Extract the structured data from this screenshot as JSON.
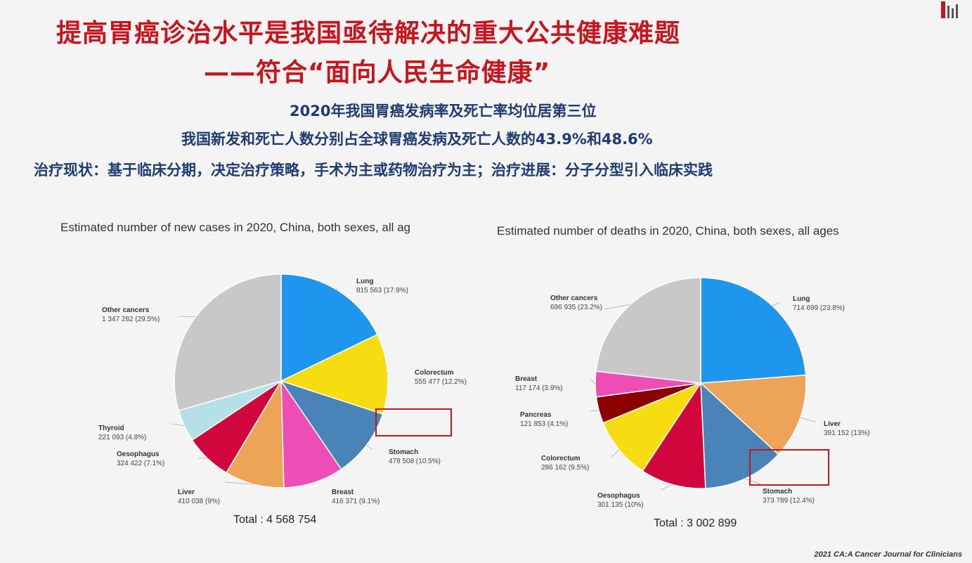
{
  "slide": {
    "title_line1": "提高胃癌诊治水平是我国亟待解决的重大公共健康难题",
    "title_line2": "——符合“面向人民生命健康”",
    "subtitle_line1": "2020年我国胃癌发病率及死亡率均位居第三位",
    "subtitle_line2": "我国新发和死亡人数分别占全球胃癌发病及死亡人数的43.9%和48.6%",
    "subtitle_line3": "治疗现状：基于临床分期，决定治疗策略，手术为主或药物治疗为主；治疗进展：分子分型引入临床实践",
    "citation": "2021 CA:A Cancer Journal for Clinicians",
    "accent_color": "#c8141c",
    "subtitle_color": "#1f3b73",
    "highlight_box_color": "#c8141c"
  },
  "chart_data": [
    {
      "type": "pie",
      "title": "Estimated number of new cases in 2020, China, both sexes, all ag",
      "total_label": "Total : 4 568 754",
      "highlighted": "Stomach",
      "slices": [
        {
          "name": "Lung",
          "value_label": "815 563 (17.9%)",
          "value": 815563,
          "percent": 17.9,
          "color": "#1f96ee"
        },
        {
          "name": "Colorectum",
          "value_label": "555 477 (12.2%)",
          "value": 555477,
          "percent": 12.2,
          "color": "#f7dc11"
        },
        {
          "name": "Stomach",
          "value_label": "478 508 (10.5%)",
          "value": 478508,
          "percent": 10.5,
          "color": "#4a83b7"
        },
        {
          "name": "Breast",
          "value_label": "416 371 (9.1%)",
          "value": 416371,
          "percent": 9.1,
          "color": "#ef4db6"
        },
        {
          "name": "Liver",
          "value_label": "410 038 (9%)",
          "value": 410038,
          "percent": 9.0,
          "color": "#eea456"
        },
        {
          "name": "Oesophagus",
          "value_label": "324 422 (7.1%)",
          "value": 324422,
          "percent": 7.1,
          "color": "#d0063c"
        },
        {
          "name": "Thyroid",
          "value_label": "221 093 (4.8%)",
          "value": 221093,
          "percent": 4.8,
          "color": "#b4e1e8"
        },
        {
          "name": "Other cancers",
          "value_label": "1 347 282 (29.5%)",
          "value": 1347282,
          "percent": 29.5,
          "color": "#c8c8c8"
        }
      ]
    },
    {
      "type": "pie",
      "title": "Estimated number of deaths in 2020, China, both sexes, all ages",
      "total_label": "Total : 3 002 899",
      "highlighted": "Stomach",
      "slices": [
        {
          "name": "Lung",
          "value_label": "714 699 (23.8%)",
          "value": 714699,
          "percent": 23.8,
          "color": "#1f96ee"
        },
        {
          "name": "Liver",
          "value_label": "391 152 (13%)",
          "value": 391152,
          "percent": 13.0,
          "color": "#eea456"
        },
        {
          "name": "Stomach",
          "value_label": "373 789 (12.4%)",
          "value": 373789,
          "percent": 12.4,
          "color": "#4a83b7"
        },
        {
          "name": "Oesophagus",
          "value_label": "301 135 (10%)",
          "value": 301135,
          "percent": 10.0,
          "color": "#d0063c"
        },
        {
          "name": "Colorectum",
          "value_label": "286 162 (9.5%)",
          "value": 286162,
          "percent": 9.5,
          "color": "#f7dc11"
        },
        {
          "name": "Pancreas",
          "value_label": "121 853 (4.1%)",
          "value": 121853,
          "percent": 4.1,
          "color": "#8b0000"
        },
        {
          "name": "Breast",
          "value_label": "117 174 (3.9%)",
          "value": 117174,
          "percent": 3.9,
          "color": "#ef4db6"
        },
        {
          "name": "Other cancers",
          "value_label": "696 935 (23.2%)",
          "value": 696935,
          "percent": 23.2,
          "color": "#c8c8c8"
        }
      ]
    }
  ]
}
